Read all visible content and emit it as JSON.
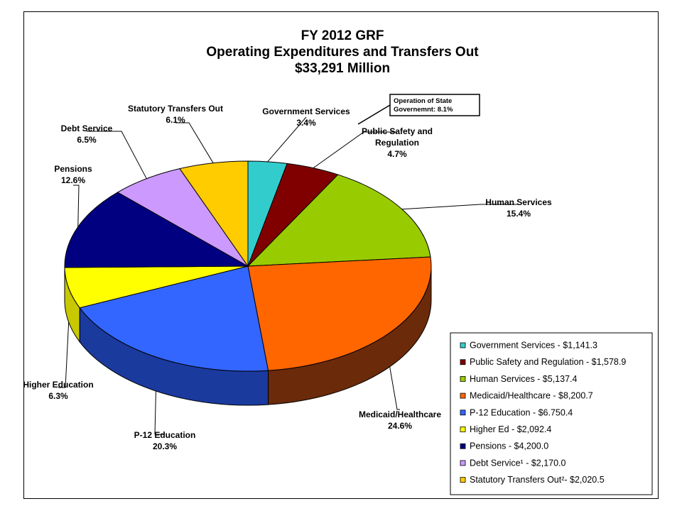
{
  "chart_data": {
    "type": "pie",
    "title_lines": [
      "FY 2012 GRF",
      "Operating Expenditures and Transfers Out",
      "$33,291 Million"
    ],
    "slices": [
      {
        "label": "Government Services",
        "value": 1141.3,
        "percent_label": "3.4%",
        "legend": "Government Services - $1,141.3",
        "color": "#33CCCC",
        "side": "#1F8A8A"
      },
      {
        "label": "Public Safety and Regulation",
        "value": 1578.9,
        "percent_label": "4.7%",
        "legend": "Public Safety and Regulation - $1,578.9",
        "color": "#800000",
        "side": "#4A0000"
      },
      {
        "label": "Human Services",
        "value": 5137.4,
        "percent_label": "15.4%",
        "legend": "Human Services - $5,137.4",
        "color": "#99CC00",
        "side": "#5E7D00"
      },
      {
        "label": "Medicaid/Healthcare",
        "value": 8200.7,
        "percent_label": "24.6%",
        "legend": "Medicaid/Healthcare - $8,200.7",
        "color": "#FF6600",
        "side": "#6B2A0A"
      },
      {
        "label": "P-12 Education",
        "value": 6750.4,
        "percent_label": "20.3%",
        "legend": "P-12 Education - $6.750.4",
        "color": "#3366FF",
        "side": "#1A3A9E"
      },
      {
        "label": "Higher Education",
        "value": 2092.4,
        "percent_label": "6.3%",
        "legend": "Higher Ed - $2,092.4",
        "color": "#FFFF00",
        "side": "#C8C800"
      },
      {
        "label": "Pensions",
        "value": 4200.0,
        "percent_label": "12.6%",
        "legend": "Pensions - $4,200.0",
        "color": "#000080",
        "side": "#00004A"
      },
      {
        "label": "Debt Service",
        "value": 2170.0,
        "percent_label": "6.5%",
        "legend": "Debt Service¹ - $2,170.0",
        "color": "#CC99FF",
        "side": "#8E66B8"
      },
      {
        "label": "Statutory Transfers Out",
        "value": 2020.5,
        "percent_label": "6.1%",
        "legend": "Statutory Transfers Out²- $2,020.5",
        "color": "#FFCC00",
        "side": "#B38F00"
      }
    ],
    "callout": {
      "lines": [
        "Operation of State",
        "Governemnt: 8.1%"
      ]
    },
    "legend_position": "bottom-right"
  }
}
